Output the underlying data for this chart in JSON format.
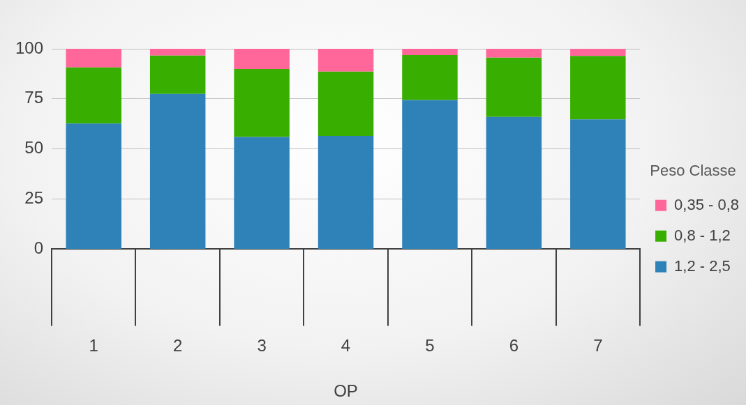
{
  "chart_data": {
    "type": "bar",
    "stacked": true,
    "xlabel": "OP",
    "legend_title": "Peso Classe",
    "legend": "right",
    "categories": [
      "1",
      "2",
      "3",
      "4",
      "5",
      "6",
      "7"
    ],
    "series": [
      {
        "name": "1,2 - 2,5",
        "color": "#2e82b8",
        "values": [
          62.7,
          77.5,
          56,
          56.5,
          74.4,
          66,
          64.8
        ]
      },
      {
        "name": "0,8 - 1,2",
        "color": "#38ae00",
        "values": [
          28,
          19.1,
          33.9,
          32.1,
          22.5,
          29.6,
          31.6
        ]
      },
      {
        "name": "0,35 - 0,8",
        "color": "#ff6699",
        "values": [
          9.3,
          3.4,
          10.1,
          11.4,
          3.1,
          4.4,
          3.6
        ]
      }
    ],
    "ylim": [
      0,
      100
    ],
    "yticks": [
      0,
      25,
      50,
      75,
      100
    ],
    "grid": "y"
  }
}
